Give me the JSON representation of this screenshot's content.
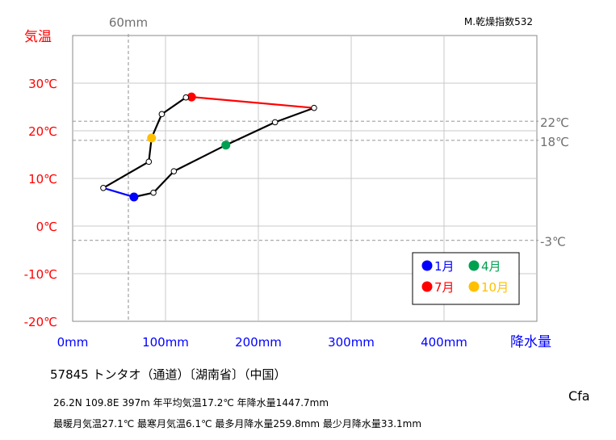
{
  "chart_data": {
    "type": "line",
    "subtype": "hythergraph",
    "ylabel": "気温",
    "xlabel": "降水量",
    "xlim": [
      0,
      500
    ],
    "ylim": [
      -20,
      40
    ],
    "x_ticks": [
      0,
      100,
      200,
      300,
      400
    ],
    "x_tick_labels": [
      "0mm",
      "100mm",
      "200mm",
      "300mm",
      "400mm"
    ],
    "y_ticks": [
      -20,
      -10,
      0,
      10,
      20,
      30
    ],
    "y_tick_labels": [
      "-20℃",
      "-10℃",
      "0℃",
      "10℃",
      "20℃",
      "30℃"
    ],
    "grid": true,
    "reference_lines": {
      "vertical": [
        {
          "x": 60,
          "label": "60mm"
        }
      ],
      "horizontal": [
        {
          "y": 22,
          "label": "22℃"
        },
        {
          "y": 18,
          "label": "18℃"
        },
        {
          "y": -3,
          "label": "-3℃"
        }
      ]
    },
    "aridity_index": "M.乾燥指数532",
    "months": [
      1,
      2,
      3,
      4,
      5,
      6,
      7,
      8,
      9,
      10,
      11,
      12
    ],
    "precipitation": [
      66,
      87,
      109,
      165,
      218,
      260,
      128,
      122,
      96,
      85,
      82,
      33
    ],
    "temperature": [
      6.1,
      7.0,
      11.5,
      17.0,
      21.8,
      24.8,
      27.1,
      27.0,
      23.5,
      18.5,
      13.5,
      8.0
    ],
    "legend_position": "lower-right",
    "legend": [
      {
        "label": "1月",
        "month": 1,
        "color": "#0000ff"
      },
      {
        "label": "4月",
        "month": 4,
        "color": "#00a050"
      },
      {
        "label": "7月",
        "month": 7,
        "color": "#ff0000"
      },
      {
        "label": "10月",
        "month": 10,
        "color": "#ffc000"
      }
    ],
    "colors": {
      "winter_segment": "#0000ff",
      "summer_segment": "#ff0000",
      "line": "#000000",
      "y_axis_text": "#ff0000",
      "x_axis_text": "#0000ff",
      "reference_line": "#a0a0a0"
    }
  },
  "station": {
    "header": "57845 トンタオ（通道）〔湖南省〕（中国）"
  },
  "stats": {
    "line1": "26.2N 109.8E 397m 年平均気温17.2℃ 年降水量1447.7mm",
    "line2": "最暖月気温27.1℃ 最寒月気温6.1℃ 最多月降水量259.8mm 最少月降水量33.1mm"
  },
  "climate_class": "Cfa"
}
